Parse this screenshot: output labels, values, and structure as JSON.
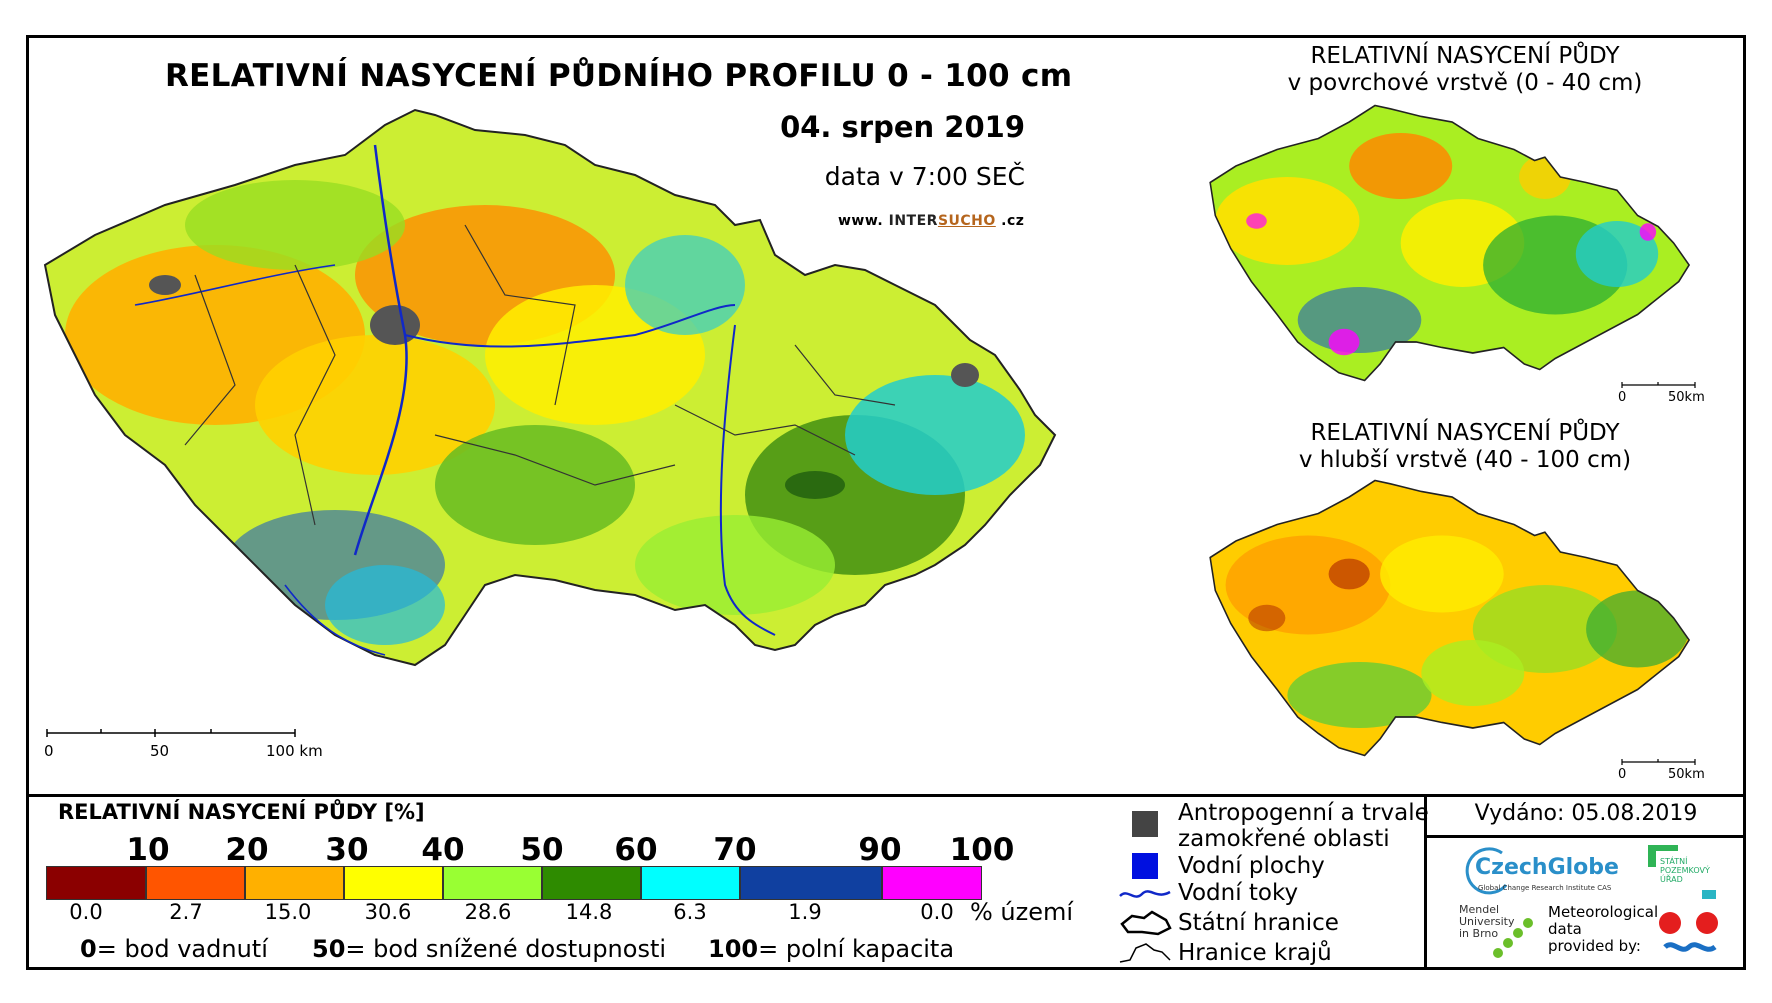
{
  "title": "RELATIVNÍ NASYCENÍ PŮDNÍHO PROFILU 0 - 100 cm",
  "date": "04. srpen 2019",
  "time": "data v 7:00 SEČ",
  "website": {
    "prefix": "www.",
    "part1": "INTER",
    "part2": "SUCHO",
    "suffix": ".cz"
  },
  "main_map": {
    "scale": {
      "labels": [
        "0",
        "50",
        "100 km"
      ]
    }
  },
  "inset_surface": {
    "title_line1": "RELATIVNÍ NASYCENÍ PŮDY",
    "title_line2": "v povrchové vrstvě (0 - 40 cm)",
    "scale": {
      "labels": [
        "0",
        "50km"
      ]
    }
  },
  "inset_deep": {
    "title_line1": "RELATIVNÍ NASYCENÍ PŮDY",
    "title_line2": "v hlubší vrstvě (40 - 100 cm)",
    "scale": {
      "labels": [
        "0",
        "50km"
      ]
    }
  },
  "legend": {
    "title": "RELATIVNÍ NASYCENÍ PŮDY [%]",
    "ticks": [
      "10",
      "20",
      "30",
      "40",
      "50",
      "60",
      "70",
      "90",
      "100"
    ],
    "classes": [
      {
        "color": "#8b0000",
        "area_pct": "0.0"
      },
      {
        "color": "#ff5500",
        "area_pct": "2.7"
      },
      {
        "color": "#ffb000",
        "area_pct": "15.0"
      },
      {
        "color": "#ffff00",
        "area_pct": "30.6"
      },
      {
        "color": "#99ff33",
        "area_pct": "28.6"
      },
      {
        "color": "#2e8b00",
        "area_pct": "14.8"
      },
      {
        "color": "#00ffff",
        "area_pct": "6.3"
      },
      {
        "color": "#1040a0",
        "area_pct": "1.9"
      },
      {
        "color": "#ff00ff",
        "area_pct": "0.0"
      }
    ],
    "unit_label": "% území",
    "explanations": [
      {
        "value": "0",
        "text": "= bod vadnutí"
      },
      {
        "value": "50",
        "text": "= bod snížené dostupnosti"
      },
      {
        "value": "100",
        "text": "= polní kapacita"
      }
    ]
  },
  "key": {
    "wetlands_line1": "Antropogenní a trvale",
    "wetlands_line2": "zamokřené oblasti",
    "water_bodies": "Vodní plochy",
    "rivers": "Vodní toky",
    "state_border": "Státní hranice",
    "region_borders": "Hranice krajů"
  },
  "issued": "Vydáno: 05.08.2019",
  "logos": {
    "czechglobe": "CzechGlobe",
    "czechglobe_sub": "Global Change Research Institute CAS",
    "mendel_line1": "Mendel",
    "mendel_line2": "University",
    "mendel_line3": "in Brno",
    "meteo_line1": "Meteorological",
    "meteo_line2": "data",
    "meteo_line3": "provided by:",
    "spu_line1": "STÁTNÍ",
    "spu_line2": "POZEMKOVÝ",
    "spu_line3": "ÚŘAD"
  }
}
